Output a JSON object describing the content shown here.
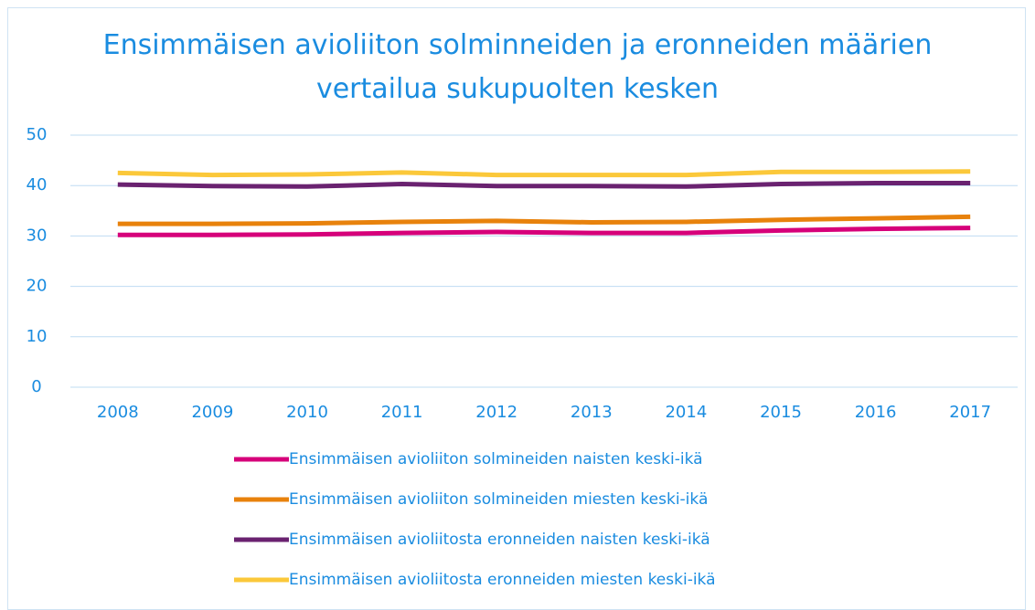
{
  "chart_data": {
    "type": "line",
    "title": "Ensimmäisen avioliiton solminneiden ja eronneiden määrien vertailua sukupuolten kesken",
    "categories": [
      "2008",
      "2009",
      "2010",
      "2011",
      "2012",
      "2013",
      "2014",
      "2015",
      "2016",
      "2017"
    ],
    "series": [
      {
        "name": "Ensimmäisen avioliiton solmineiden naisten keski-ikä",
        "color": "#d6007a",
        "values": [
          30.2,
          30.2,
          30.3,
          30.6,
          30.8,
          30.6,
          30.6,
          31.1,
          31.4,
          31.6
        ]
      },
      {
        "name": "Ensimmäisen avioliiton solmineiden miesten keski-ikä",
        "color": "#e8820c",
        "values": [
          32.4,
          32.4,
          32.5,
          32.8,
          33.0,
          32.7,
          32.8,
          33.2,
          33.5,
          33.8
        ]
      },
      {
        "name": "Ensimmäisen avioliitosta eronneiden naisten keski-ikä",
        "color": "#6a2270",
        "values": [
          40.2,
          39.9,
          39.8,
          40.3,
          39.9,
          39.9,
          39.8,
          40.3,
          40.5,
          40.5
        ]
      },
      {
        "name": "Ensimmäisen avioliitosta eronneiden miesten keski-ikä",
        "color": "#fbc83a",
        "values": [
          42.5,
          42.1,
          42.2,
          42.6,
          42.1,
          42.1,
          42.1,
          42.7,
          42.7,
          42.8
        ]
      }
    ],
    "ylim": [
      0,
      50
    ],
    "yticks": [
      0,
      10,
      20,
      30,
      40,
      50
    ],
    "grid": true,
    "legend": "bottom"
  }
}
